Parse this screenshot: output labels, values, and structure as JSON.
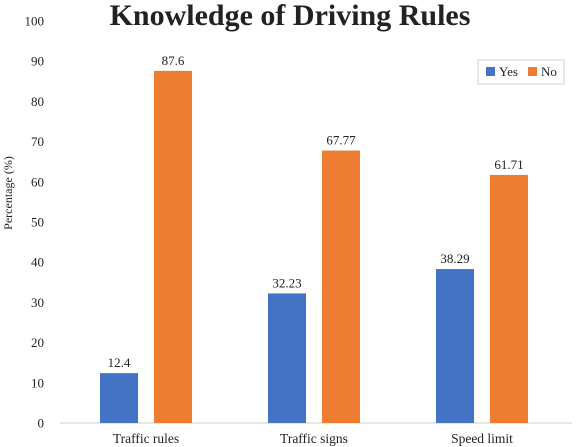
{
  "chart_data": {
    "type": "bar",
    "title": "Knowledge of Driving Rules",
    "xlabel": "",
    "ylabel": "Percentage (%)",
    "ylim": [
      0,
      100
    ],
    "yticks": [
      "0",
      "10",
      "20",
      "30",
      "40",
      "50",
      "60",
      "70",
      "80",
      "90",
      "100"
    ],
    "categories": [
      "Traffic rules",
      "Traffic signs",
      "Speed limit"
    ],
    "series": [
      {
        "name": "Yes",
        "color": "#4472C4",
        "values": [
          12.4,
          32.23,
          38.29
        ],
        "labels": [
          "12.4",
          "32.23",
          "38.29"
        ]
      },
      {
        "name": "No",
        "color": "#ED7D31",
        "values": [
          87.6,
          67.77,
          61.71
        ],
        "labels": [
          "87.6",
          "67.77",
          "61.71"
        ]
      }
    ],
    "grid": false,
    "legend_position": "top-right"
  }
}
